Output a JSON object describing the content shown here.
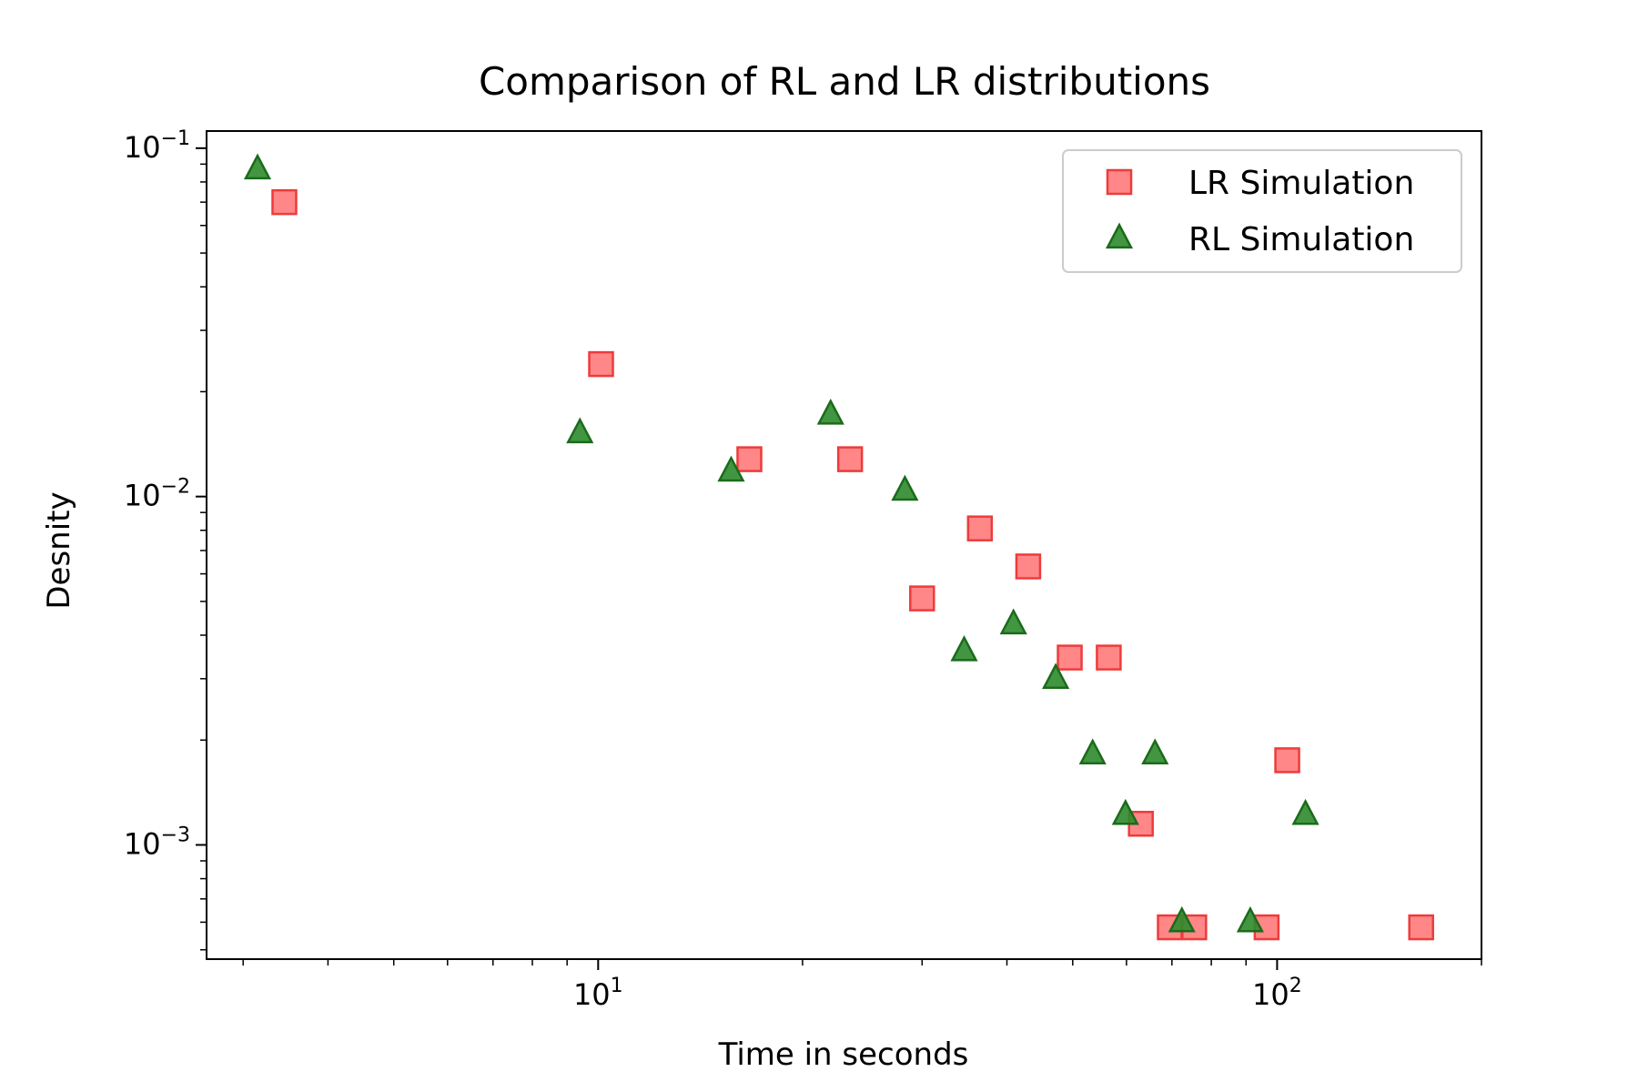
{
  "chart_data": {
    "type": "scatter",
    "title": "Comparison of RL and LR distributions",
    "xlabel": "Time in seconds",
    "ylabel": "Desnity",
    "xscale": "log",
    "yscale": "log",
    "xlim": [
      2.65,
      200
    ],
    "ylim": [
      0.00047,
      0.112
    ],
    "grid": false,
    "legend_position": "top-right",
    "x_ticks": [
      {
        "value": 10,
        "base": "10",
        "exp": "1"
      },
      {
        "value": 100,
        "base": "10",
        "exp": "2"
      }
    ],
    "y_ticks": [
      {
        "value": 0.1,
        "base": "10",
        "exp": "−1"
      },
      {
        "value": 0.01,
        "base": "10",
        "exp": "−2"
      },
      {
        "value": 0.001,
        "base": "10",
        "exp": "−3"
      }
    ],
    "series": [
      {
        "name": "LR Simulation",
        "marker": "square",
        "color": "#ff7a7a",
        "edge_color": "#ee3b3b",
        "points": [
          [
            3.45,
            0.07
          ],
          [
            10.1,
            0.024
          ],
          [
            16.7,
            0.0128
          ],
          [
            23.5,
            0.0128
          ],
          [
            30.0,
            0.0051
          ],
          [
            36.5,
            0.0081
          ],
          [
            43.0,
            0.0063
          ],
          [
            49.5,
            0.00345
          ],
          [
            56.5,
            0.00345
          ],
          [
            63.0,
            0.00115
          ],
          [
            69.5,
            0.00058
          ],
          [
            75.5,
            0.00058
          ],
          [
            96.5,
            0.00058
          ],
          [
            103.5,
            0.00175
          ],
          [
            163.0,
            0.00058
          ]
        ]
      },
      {
        "name": "RL Simulation",
        "marker": "triangle",
        "color": "#2e8b2e",
        "edge_color": "#1a6b1a",
        "points": [
          [
            3.15,
            0.087
          ],
          [
            9.4,
            0.0152
          ],
          [
            15.7,
            0.0118
          ],
          [
            22.0,
            0.0172
          ],
          [
            28.3,
            0.0104
          ],
          [
            34.6,
            0.0036
          ],
          [
            40.9,
            0.0043
          ],
          [
            47.2,
            0.003
          ],
          [
            53.5,
            0.00182
          ],
          [
            59.8,
            0.00122
          ],
          [
            66.1,
            0.00182
          ],
          [
            72.4,
            0.0006
          ],
          [
            91.3,
            0.0006
          ],
          [
            110.1,
            0.00122
          ]
        ]
      }
    ]
  }
}
